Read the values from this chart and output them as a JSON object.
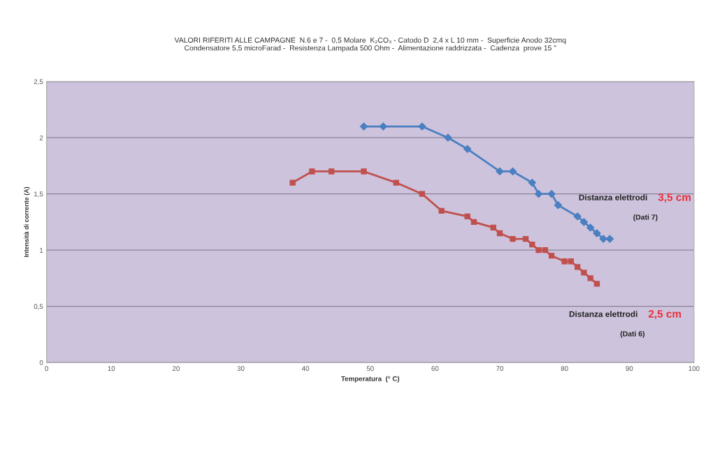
{
  "chart_data": {
    "type": "line",
    "title": "VALORI RIFERITI ALLE CAMPAGNE  N.6 e 7 -  0,5 Molare  K₂CO₃ - Catodo D  2,4 x L 10 mm -  Superficie Anodo 32cmq\nCondensatore 5,5 microFarad -  Resistenza Lampada 500 Ohm -  Alimentazione raddrizzata -  Cadenza  prove 15 \"",
    "xlabel": "Temperatura  (° C)",
    "ylabel": "Intensità di corrente (A)",
    "series": [
      {
        "color": "#4a7fc1",
        "marker": "diamond",
        "x": [
          49,
          52,
          58,
          62,
          65,
          70,
          72,
          75,
          76,
          78,
          79,
          82,
          83,
          84,
          85,
          86,
          87
        ],
        "values": [
          2.1,
          2.1,
          2.1,
          2.0,
          1.9,
          1.7,
          1.7,
          1.6,
          1.5,
          1.5,
          1.4,
          1.3,
          1.25,
          1.2,
          1.15,
          1.1,
          1.1
        ]
      },
      {
        "color": "#c0504d",
        "marker": "square",
        "x": [
          38,
          41,
          44,
          49,
          54,
          58,
          61,
          65,
          66,
          69,
          70,
          72,
          74,
          75,
          76,
          77,
          78,
          80,
          81,
          82,
          83,
          84,
          85
        ],
        "values": [
          1.6,
          1.7,
          1.7,
          1.7,
          1.6,
          1.5,
          1.35,
          1.3,
          1.25,
          1.2,
          1.15,
          1.1,
          1.1,
          1.05,
          1.0,
          1.0,
          0.95,
          0.9,
          0.9,
          0.85,
          0.8,
          0.75,
          0.7
        ]
      }
    ],
    "annotations": [
      "Distanza elettrodi",
      "3,5 cm",
      "(Dati 7)",
      "Distanza elettrodi",
      "2,5 cm",
      "(Dati 6)"
    ],
    "xlim": [
      0,
      100
    ],
    "xticks": [
      0,
      10,
      20,
      30,
      40,
      50,
      60,
      70,
      80,
      90,
      100
    ],
    "ylim": [
      0,
      2.5
    ],
    "yticks": [
      0,
      {
        "value": 0.5,
        "label": "0,5"
      },
      1,
      {
        "value": 1.5,
        "label": "1,5"
      },
      2,
      {
        "value": 2.5,
        "label": "2,5"
      }
    ],
    "grid": "y",
    "legend": false,
    "line_style": "solid"
  }
}
